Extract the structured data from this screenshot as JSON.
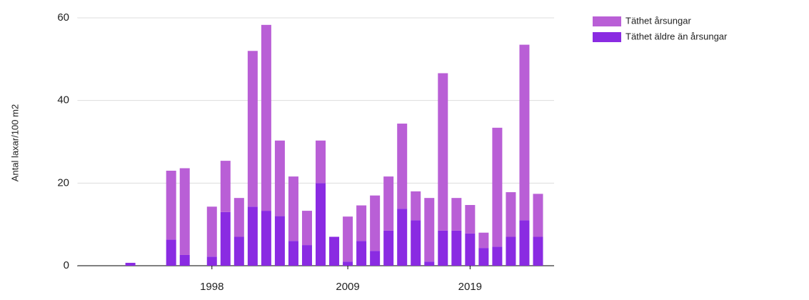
{
  "chart_data": {
    "type": "stacked_bar",
    "y_label": "Antal laxar/100 m2",
    "categories": [
      null,
      null,
      null,
      null,
      null,
      null,
      null,
      null,
      null,
      "1998",
      null,
      null,
      null,
      null,
      null,
      null,
      null,
      null,
      null,
      "2009",
      null,
      null,
      null,
      null,
      null,
      null,
      null,
      null,
      "2019",
      null,
      null,
      null,
      null,
      null
    ],
    "series": [
      {
        "name": "Täthet årsungar",
        "color": "#b95fd6",
        "values": [
          null,
          null,
          null,
          0,
          null,
          null,
          16.7,
          21,
          null,
          12.1,
          12.4,
          9.4,
          37.7,
          45,
          18.3,
          15.6,
          8.3,
          10.3,
          0,
          10.9,
          8.6,
          13.4,
          13.1,
          20.6,
          7,
          15.4,
          38.1,
          7.9,
          6.9,
          3.7,
          28.8,
          10.8,
          42.5,
          10.4
        ]
      },
      {
        "name": "Täthet äldre än årsungar",
        "color": "#8a2be2",
        "values": [
          null,
          null,
          null,
          0.7,
          null,
          null,
          6.3,
          2.6,
          null,
          2.2,
          13,
          7,
          14.3,
          13.3,
          12,
          6,
          5,
          20,
          7,
          1,
          6,
          3.6,
          8.5,
          13.8,
          11,
          1,
          8.5,
          8.5,
          7.8,
          4.3,
          4.6,
          7,
          11,
          7
        ]
      }
    ],
    "ylim": [
      0,
      60
    ],
    "yticks": [
      0,
      20,
      40,
      60
    ],
    "grid": true,
    "legend": "top-right"
  }
}
